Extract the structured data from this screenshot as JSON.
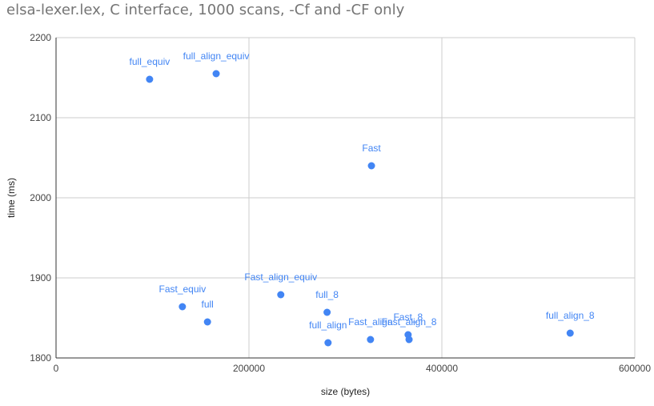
{
  "chart_data": {
    "type": "scatter",
    "title": "elsa-lexer.lex, C interface, 1000 scans, -Cf and -CF only",
    "xlabel": "size (bytes)",
    "ylabel": "time (ms)",
    "xlim": [
      0,
      600000
    ],
    "ylim": [
      1800,
      2200
    ],
    "xticks": [
      0,
      200000,
      400000,
      600000
    ],
    "yticks": [
      1800,
      1900,
      2000,
      2100,
      2200
    ],
    "xtick_labels": [
      "0",
      "200000",
      "400000",
      "600000"
    ],
    "ytick_labels": [
      "1800",
      "1900",
      "2000",
      "2100",
      "2200"
    ],
    "grid": true,
    "point_color": "#4285f4",
    "points": [
      {
        "label": "full_equiv",
        "x": 97000,
        "y": 2148
      },
      {
        "label": "full_align_equiv",
        "x": 166000,
        "y": 2155
      },
      {
        "label": "Fast",
        "x": 327000,
        "y": 2040
      },
      {
        "label": "Fast_equiv",
        "x": 131000,
        "y": 1864
      },
      {
        "label": "full",
        "x": 157000,
        "y": 1845
      },
      {
        "label": "Fast_align_equiv",
        "x": 233000,
        "y": 1879
      },
      {
        "label": "full_8",
        "x": 281000,
        "y": 1857
      },
      {
        "label": "full_align",
        "x": 282000,
        "y": 1819
      },
      {
        "label": "Fast_align",
        "x": 326000,
        "y": 1823
      },
      {
        "label": "Fast_8",
        "x": 365000,
        "y": 1829
      },
      {
        "label": "Fast_align_8",
        "x": 366000,
        "y": 1823
      },
      {
        "label": "full_align_8",
        "x": 533000,
        "y": 1831
      }
    ]
  }
}
